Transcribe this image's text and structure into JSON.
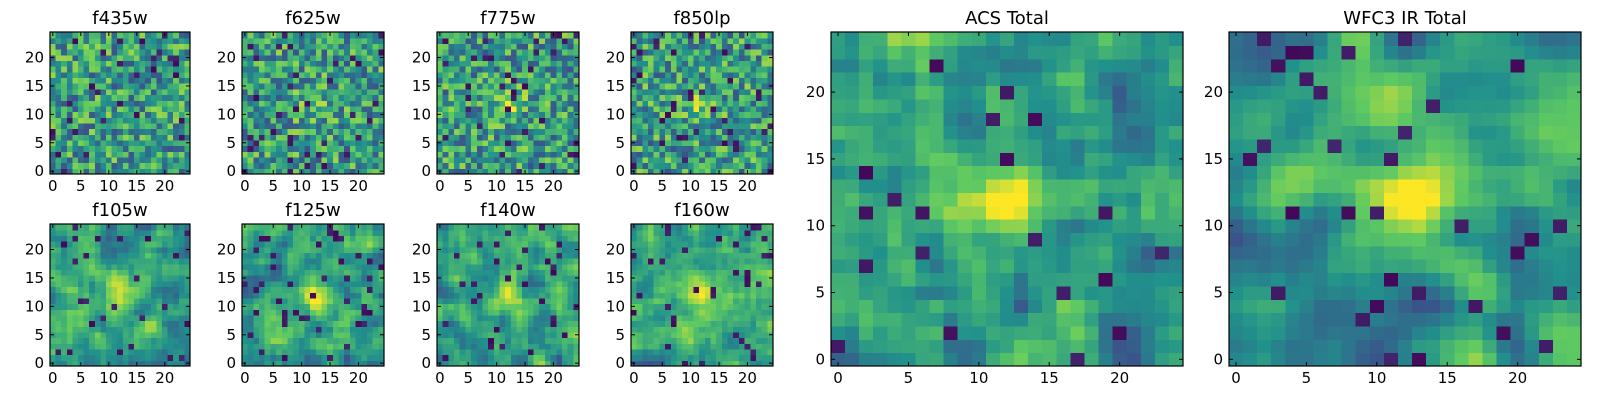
{
  "chart_data": [
    {
      "type": "heatmap",
      "title": "f435w",
      "size": 25,
      "seed": 11,
      "smooth": 0,
      "blob": 0.0,
      "dark": 0.05,
      "xticks": [
        0,
        5,
        10,
        15,
        20
      ],
      "yticks": [
        0,
        5,
        10,
        15,
        20
      ],
      "xtick_labels": [
        "0",
        "5",
        "10",
        "15",
        "20"
      ],
      "ytick_labels": [
        "0",
        "5",
        "10",
        "15",
        "20"
      ]
    },
    {
      "type": "heatmap",
      "title": "f625w",
      "size": 25,
      "seed": 23,
      "smooth": 0,
      "blob": 0.2,
      "dark": 0.05,
      "xticks": [
        0,
        5,
        10,
        15,
        20
      ],
      "yticks": [
        0,
        5,
        10,
        15,
        20
      ],
      "xtick_labels": [
        "0",
        "5",
        "10",
        "15",
        "20"
      ],
      "ytick_labels": [
        "0",
        "5",
        "10",
        "15",
        "20"
      ]
    },
    {
      "type": "heatmap",
      "title": "f775w",
      "size": 25,
      "seed": 37,
      "smooth": 0,
      "blob": 0.25,
      "dark": 0.06,
      "xticks": [
        0,
        5,
        10,
        15,
        20
      ],
      "yticks": [
        0,
        5,
        10,
        15,
        20
      ],
      "xtick_labels": [
        "0",
        "5",
        "10",
        "15",
        "20"
      ],
      "ytick_labels": [
        "0",
        "5",
        "10",
        "15",
        "20"
      ]
    },
    {
      "type": "heatmap",
      "title": "f850lp",
      "size": 25,
      "seed": 41,
      "smooth": 0,
      "blob": 0.2,
      "dark": 0.07,
      "xticks": [
        0,
        5,
        10,
        15,
        20
      ],
      "yticks": [
        0,
        5,
        10,
        15,
        20
      ],
      "xtick_labels": [
        "0",
        "5",
        "10",
        "15",
        "20"
      ],
      "ytick_labels": [
        "0",
        "5",
        "10",
        "15",
        "20"
      ]
    },
    {
      "type": "heatmap",
      "title": "f105w",
      "size": 25,
      "seed": 53,
      "smooth": 1,
      "blob": 0.35,
      "dark": 0.05,
      "xticks": [
        0,
        5,
        10,
        15,
        20
      ],
      "yticks": [
        0,
        5,
        10,
        15,
        20
      ],
      "xtick_labels": [
        "0",
        "5",
        "10",
        "15",
        "20"
      ],
      "ytick_labels": [
        "0",
        "5",
        "10",
        "15",
        "20"
      ]
    },
    {
      "type": "heatmap",
      "title": "f125w",
      "size": 25,
      "seed": 67,
      "smooth": 1,
      "blob": 0.35,
      "dark": 0.05,
      "xticks": [
        0,
        5,
        10,
        15,
        20
      ],
      "yticks": [
        0,
        5,
        10,
        15,
        20
      ],
      "xtick_labels": [
        "0",
        "5",
        "10",
        "15",
        "20"
      ],
      "ytick_labels": [
        "0",
        "5",
        "10",
        "15",
        "20"
      ]
    },
    {
      "type": "heatmap",
      "title": "f140w",
      "size": 25,
      "seed": 79,
      "smooth": 1,
      "blob": 0.35,
      "dark": 0.06,
      "xticks": [
        0,
        5,
        10,
        15,
        20
      ],
      "yticks": [
        0,
        5,
        10,
        15,
        20
      ],
      "xtick_labels": [
        "0",
        "5",
        "10",
        "15",
        "20"
      ],
      "ytick_labels": [
        "0",
        "5",
        "10",
        "15",
        "20"
      ]
    },
    {
      "type": "heatmap",
      "title": "f160w",
      "size": 25,
      "seed": 97,
      "smooth": 1,
      "blob": 0.35,
      "dark": 0.06,
      "xticks": [
        0,
        5,
        10,
        15,
        20
      ],
      "yticks": [
        0,
        5,
        10,
        15,
        20
      ],
      "xtick_labels": [
        "0",
        "5",
        "10",
        "15",
        "20"
      ],
      "ytick_labels": [
        "0",
        "5",
        "10",
        "15",
        "20"
      ]
    },
    {
      "type": "heatmap",
      "title": "ACS Total",
      "size": 25,
      "seed": 131,
      "smooth": 1,
      "blob": 0.55,
      "dark": 0.04,
      "xticks": [
        0,
        5,
        10,
        15,
        20
      ],
      "yticks": [
        0,
        5,
        10,
        15,
        20
      ],
      "xtick_labels": [
        "0",
        "5",
        "10",
        "15",
        "20"
      ],
      "ytick_labels": [
        "0",
        "5",
        "10",
        "15",
        "20"
      ]
    },
    {
      "type": "heatmap",
      "title": "WFC3 IR Total",
      "size": 25,
      "seed": 149,
      "smooth": 2,
      "blob": 0.65,
      "dark": 0.06,
      "xticks": [
        0,
        5,
        10,
        15,
        20
      ],
      "yticks": [
        0,
        5,
        10,
        15,
        20
      ],
      "xtick_labels": [
        "0",
        "5",
        "10",
        "15",
        "20"
      ],
      "ytick_labels": [
        "0",
        "5",
        "10",
        "15",
        "20"
      ]
    }
  ],
  "colormap": [
    "#440154",
    "#3b528b",
    "#21918c",
    "#5ec962",
    "#fde725"
  ]
}
